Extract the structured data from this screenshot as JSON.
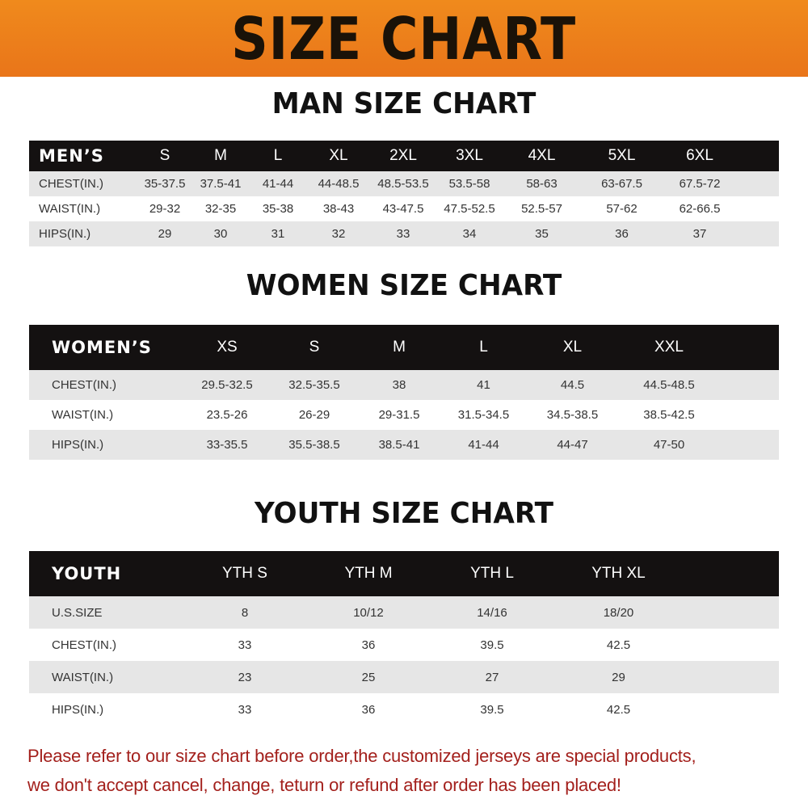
{
  "title": "SIZE CHART",
  "men": {
    "title": "MAN SIZE CHART",
    "header": [
      "MEN’S",
      "S",
      "M",
      "L",
      "XL",
      "2XL",
      "3XL",
      "4XL",
      "5XL",
      "6XL"
    ],
    "rows": [
      [
        "CHEST(IN.)",
        "35-37.5",
        "37.5-41",
        "41-44",
        "44-48.5",
        "48.5-53.5",
        "53.5-58",
        "58-63",
        "63-67.5",
        "67.5-72"
      ],
      [
        "WAIST(IN.)",
        "29-32",
        "32-35",
        "35-38",
        "38-43",
        "43-47.5",
        "47.5-52.5",
        "52.5-57",
        "57-62",
        "62-66.5"
      ],
      [
        "HIPS(IN.)",
        "29",
        "30",
        "31",
        "32",
        "33",
        "34",
        "35",
        "36",
        "37"
      ]
    ]
  },
  "women": {
    "title": "WOMEN SIZE CHART",
    "header": [
      "WOMEN’S",
      "XS",
      "S",
      "M",
      "L",
      "XL",
      "XXL"
    ],
    "rows": [
      [
        "CHEST(IN.)",
        "29.5-32.5",
        "32.5-35.5",
        "38",
        "41",
        "44.5",
        "44.5-48.5"
      ],
      [
        "WAIST(IN.)",
        "23.5-26",
        "26-29",
        "29-31.5",
        "31.5-34.5",
        "34.5-38.5",
        "38.5-42.5"
      ],
      [
        "HIPS(IN.)",
        "33-35.5",
        "35.5-38.5",
        "38.5-41",
        "41-44",
        "44-47",
        "47-50"
      ]
    ]
  },
  "youth": {
    "title": "YOUTH SIZE CHART",
    "header": [
      "YOUTH",
      "YTH S",
      "YTH M",
      "YTH L",
      "YTH XL"
    ],
    "rows": [
      [
        "U.S.SIZE",
        "8",
        "10/12",
        "14/16",
        "18/20"
      ],
      [
        "CHEST(IN.)",
        "33",
        "36",
        "39.5",
        "42.5"
      ],
      [
        "WAIST(IN.)",
        "23",
        "25",
        "27",
        "29"
      ],
      [
        "HIPS(IN.)",
        "33",
        "36",
        "39.5",
        "42.5"
      ]
    ]
  },
  "notice": [
    "Please refer to our size chart before order,the customized jerseys are special products,",
    "we don't accept cancel, change, teturn or refund after order has been placed!"
  ],
  "colors": {
    "banner": "#ee8020",
    "header_row": "#141111",
    "notice": "#a3201c",
    "stripe": "#e6e6e6"
  }
}
